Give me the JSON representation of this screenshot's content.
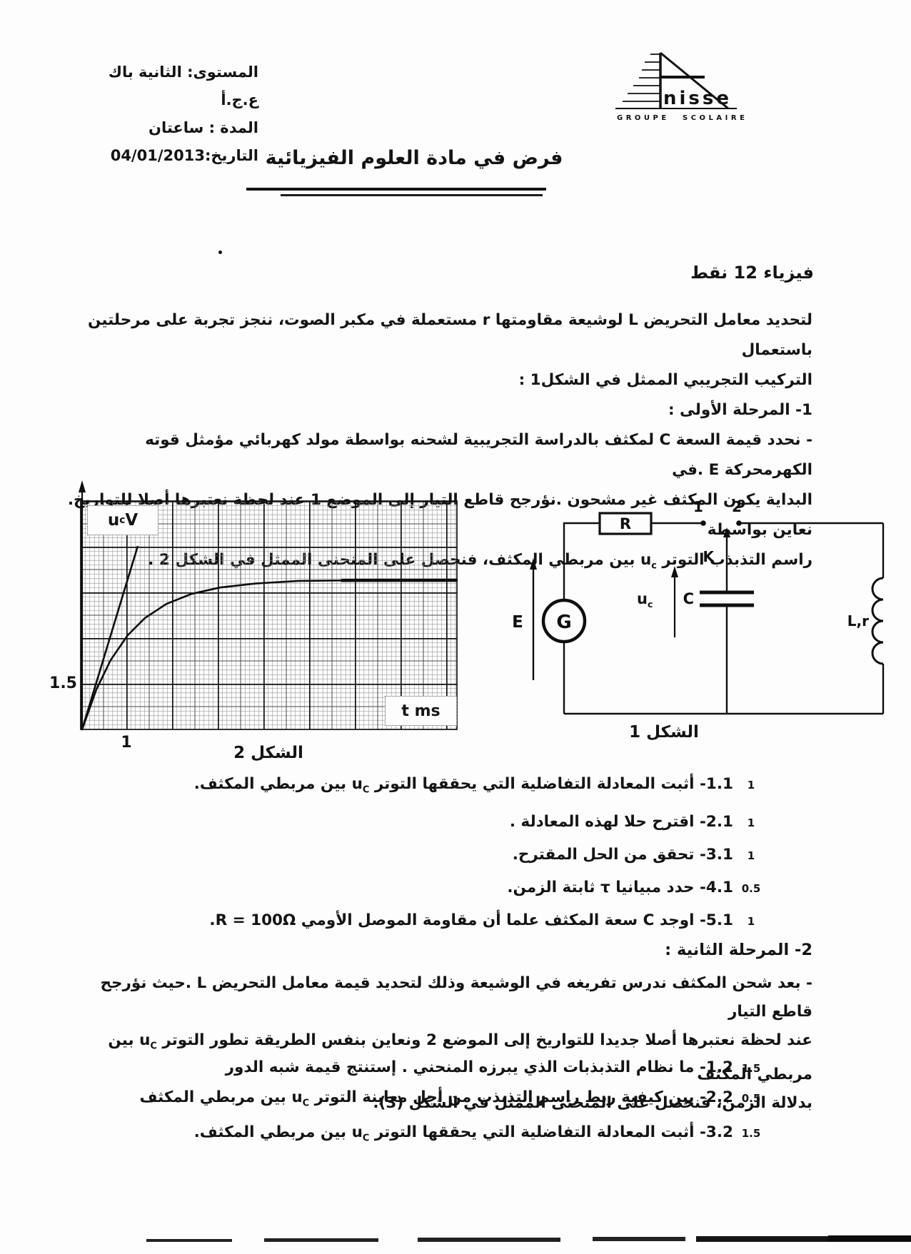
{
  "header": {
    "info_lines": [
      "المستوى: الثانية باك ع.ج.أ",
      "المدة : ساعتان",
      "التاريخ:04/01/2013"
    ],
    "title": "فرض في مادة العلوم الفيزيائية"
  },
  "logo": {
    "name": "nisse",
    "groupe": "GROUPE",
    "scolaire": "SCOLAIRE"
  },
  "physics": {
    "heading": "فيزياء  12 نقط",
    "intro_lines": [
      "لتحديد معامل التحريض L لوشيعة مقاومتها r مستعملة في مكبر الصوت، ننجز تجربة على مرحلتين باستعمال",
      "التركيب التجريبي الممثل في الشكل1 :"
    ],
    "phase1_heading": "1- المرحلة الأولى :",
    "phase1_lines": [
      "- نحدد قيمة السعة C لمكثف بالدراسة التجريبية لشحنه بواسطة مولد كهربائي مؤمثل قوته الكهرمحركة E .في",
      "البداية يكون المكثف غير مشحون .نؤرجح قاطع التيار إلى الموضع 1 عند لحظة نعتبرها أصلا للتواريخ. نعاين بواسطة",
      "راسم التذبذب التوتر u<sub>c</sub> بين مربطي المكثف، فنحصل على المنحنى الممثل في الشكل 2 ."
    ]
  },
  "figure2": {
    "caption": "الشكل 2",
    "y_axis_label": "u<sub>c</sub> V",
    "x_axis_label": "t ms",
    "y_tick": "1.5",
    "x_tick": "1"
  },
  "figure1": {
    "caption": "الشكل 1",
    "labels": {
      "r": "R",
      "pos1": "1",
      "pos2": "2",
      "k": "K",
      "c": "C",
      "g": "G",
      "e": "E",
      "uc": "u<sub>c</sub>",
      "lr": "L,r"
    }
  },
  "questions_phase1": [
    {
      "points": "1",
      "text": "1.1- أثبت المعادلة التفاضلية التي يحققها التوتر  u<sub>C</sub>  بين مربطي المكثف."
    },
    {
      "points": "1",
      "text": "2.1- اقترح حلا لهذه المعادلة ."
    },
    {
      "points": "1",
      "text": "3.1- تحقق من الحل المقترح."
    },
    {
      "points": "0.5",
      "text": "4.1- حدد مبيانيا τ ثابتة الزمن."
    },
    {
      "points": "1",
      "text": "5.1- اوجد C سعة المكثف علما أن مقاومة الموصل الأومي R = 100Ω."
    }
  ],
  "phase2": {
    "heading": "2-  المرحلة الثانية :",
    "lines": [
      "- بعد شحن المكثف ندرس تفريغه في الوشيعة وذلك لتحديد قيمة معامل التحريض L .حيث نؤرجح  قاطع التيار",
      "عند لحظة  نعتبرها أصلا جديدا للتواريخ إلى الموضع 2 ونعاين بنفس الطريقة تطور التوتر u<sub>C</sub> بين مربطي المكثف",
      "بدلالة الزمن، فنحصل على المنحنى الممثل في الشكل (3)."
    ]
  },
  "questions_phase2": [
    {
      "points": "1.5",
      "text": "1.2-  ما نظام التذبذبات الذي يبرزه المنحني . إستنتج قيمة شبه الدور"
    },
    {
      "points": "0.5",
      "text": "2.2-  بين كيفية ربط راسم التذبذب من أجل معاينة التوتر u<sub>C</sub> بين مربطي المكثف"
    },
    {
      "points": "1.5",
      "text": "3.2- أثبت المعادلة التفاضلية التي يحققها التوتر u<sub>C</sub> بين مربطي المكثف."
    }
  ],
  "chart_data": {
    "type": "line",
    "title": "الشكل 2",
    "xlabel": "t ms",
    "ylabel": "uc V",
    "grid": "millimeter paper, bold line every major division",
    "x_per_major_division_ms": 1,
    "y_per_major_division_V": 1.5,
    "visible_x_tick_labels": [
      "1"
    ],
    "visible_y_tick_labels": [
      "1.5"
    ],
    "x_range_ms": [
      0,
      8.2
    ],
    "y_range_V": [
      0,
      7.5
    ],
    "asymptote_V": 6,
    "time_constant_graphical_ms": 1,
    "series": [
      {
        "name": "uc charging curve uc(t)=E(1-exp(-t/tau))",
        "x_ms": [
          0,
          0.5,
          1,
          1.5,
          2,
          3,
          4,
          6,
          8
        ],
        "y_V": [
          0,
          2.36,
          3.79,
          4.66,
          5.19,
          5.7,
          5.89,
          5.98,
          6.0
        ]
      },
      {
        "name": "tangent at origin (slope E/tau = 6 V/ms)",
        "x_ms": [
          0,
          1.2
        ],
        "y_V": [
          0,
          7.2
        ]
      }
    ],
    "legend": "none"
  }
}
